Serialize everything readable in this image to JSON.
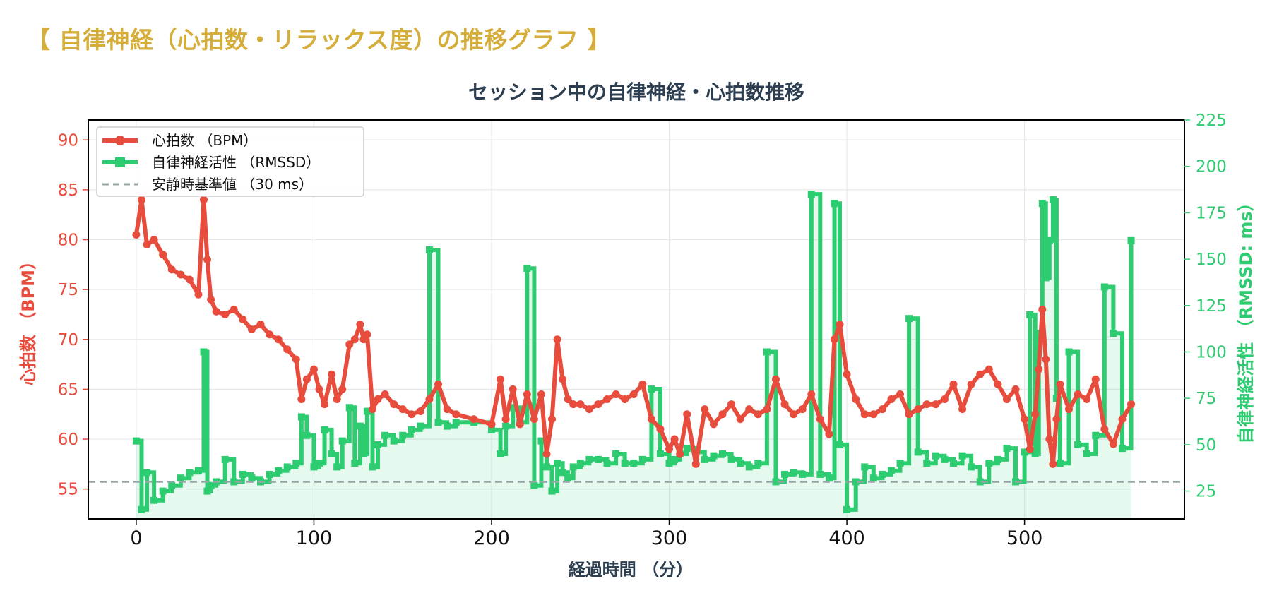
{
  "page": {
    "heading": "【 自律神経（心拍数・リラックス度）の推移グラフ 】"
  },
  "colors": {
    "heading": "#d4ad3a",
    "hr": "#e74c3c",
    "hrv": "#2ecc71",
    "baseline": "#95a5a6",
    "title": "#2c3e50"
  },
  "chart_data": {
    "type": "line",
    "title": "セッション中の自律神経・心拍数推移",
    "xlabel": "経過時間 （分）",
    "ylabel_left": "心拍数 （BPM）",
    "ylabel_right": "自律神経活性 （RMSSD: ms）",
    "xlim": [
      -27,
      590
    ],
    "ylim_left": [
      52,
      92
    ],
    "ylim_right": [
      10,
      225
    ],
    "x_ticks": [
      0,
      100,
      200,
      300,
      400,
      500
    ],
    "y_ticks_left": [
      55,
      60,
      65,
      70,
      75,
      80,
      85,
      90
    ],
    "y_ticks_right": [
      25,
      50,
      75,
      100,
      125,
      150,
      175,
      200,
      225
    ],
    "grid": true,
    "legend_position": "top-left",
    "series": [
      {
        "name": "心拍数 （BPM）",
        "axis": "left",
        "x": [
          0,
          3,
          6,
          10,
          15,
          20,
          25,
          30,
          35,
          38,
          40,
          42,
          45,
          50,
          55,
          60,
          65,
          70,
          75,
          80,
          85,
          90,
          93,
          96,
          100,
          103,
          106,
          110,
          113,
          116,
          120,
          123,
          126,
          128,
          130,
          133,
          136,
          140,
          145,
          150,
          155,
          160,
          165,
          170,
          175,
          180,
          190,
          200,
          205,
          208,
          212,
          216,
          220,
          224,
          228,
          231,
          234,
          237,
          240,
          243,
          246,
          250,
          255,
          260,
          265,
          270,
          275,
          280,
          285,
          290,
          295,
          300,
          303,
          306,
          310,
          315,
          320,
          325,
          330,
          335,
          340,
          345,
          350,
          355,
          360,
          365,
          370,
          375,
          380,
          385,
          390,
          393,
          396,
          400,
          405,
          410,
          415,
          420,
          425,
          430,
          435,
          440,
          445,
          450,
          455,
          460,
          465,
          470,
          475,
          480,
          485,
          490,
          495,
          500,
          503,
          506,
          508,
          510,
          512,
          514,
          516,
          518,
          520,
          525,
          530,
          535,
          540,
          545,
          550,
          555,
          560
        ],
        "values": [
          80.5,
          84.0,
          79.5,
          80.0,
          78.5,
          77.0,
          76.5,
          76.0,
          74.5,
          84.0,
          78.0,
          74.0,
          72.8,
          72.5,
          73.0,
          72.0,
          71.0,
          71.5,
          70.5,
          70.0,
          69.0,
          68.0,
          64.0,
          66.0,
          67.0,
          65.0,
          63.5,
          66.5,
          64.0,
          65.0,
          69.5,
          70.0,
          71.5,
          70.0,
          70.5,
          63.0,
          64.0,
          64.5,
          63.5,
          63.0,
          62.5,
          62.8,
          64.0,
          65.5,
          63.0,
          62.5,
          62.0,
          61.5,
          66.0,
          62.0,
          65.0,
          61.5,
          64.5,
          62.0,
          64.5,
          58.5,
          62.0,
          70.0,
          66.0,
          64.0,
          63.5,
          63.5,
          63.0,
          63.5,
          64.0,
          64.5,
          64.0,
          64.5,
          65.5,
          62.0,
          61.0,
          59.0,
          60.0,
          58.5,
          62.5,
          57.5,
          63.0,
          61.5,
          62.5,
          63.5,
          62.0,
          63.0,
          62.5,
          63.0,
          66.0,
          63.5,
          62.5,
          63.0,
          64.5,
          62.0,
          60.5,
          70.0,
          71.5,
          66.5,
          64.0,
          62.5,
          62.5,
          63.0,
          64.0,
          64.5,
          62.5,
          63.0,
          63.5,
          63.5,
          64.0,
          65.5,
          63.0,
          65.5,
          66.5,
          67.0,
          65.5,
          64.0,
          65.0,
          62.0,
          59.0,
          62.5,
          67.0,
          73.0,
          68.0,
          60.0,
          57.5,
          62.0,
          65.5,
          63.0,
          64.5,
          64.0,
          66.0,
          61.0,
          59.5,
          62.0,
          63.5
        ]
      },
      {
        "name": "自律神経活性 （RMSSD）",
        "axis": "right",
        "x": [
          0,
          3,
          6,
          10,
          15,
          20,
          25,
          30,
          35,
          38,
          40,
          42,
          45,
          50,
          55,
          60,
          65,
          70,
          75,
          80,
          85,
          90,
          93,
          96,
          100,
          103,
          106,
          110,
          113,
          116,
          120,
          123,
          126,
          128,
          130,
          133,
          136,
          140,
          145,
          150,
          155,
          160,
          165,
          170,
          175,
          180,
          190,
          200,
          205,
          208,
          212,
          216,
          220,
          224,
          228,
          231,
          234,
          237,
          240,
          243,
          246,
          250,
          255,
          260,
          265,
          270,
          275,
          280,
          285,
          290,
          295,
          300,
          303,
          306,
          310,
          315,
          320,
          325,
          330,
          335,
          340,
          345,
          350,
          355,
          360,
          365,
          370,
          375,
          380,
          385,
          390,
          393,
          396,
          400,
          405,
          410,
          415,
          420,
          425,
          430,
          435,
          440,
          445,
          450,
          455,
          460,
          465,
          470,
          475,
          480,
          485,
          490,
          495,
          500,
          503,
          506,
          508,
          510,
          512,
          514,
          516,
          518,
          520,
          525,
          530,
          535,
          540,
          545,
          550,
          555,
          560
        ],
        "values": [
          52,
          15,
          35,
          20,
          25,
          28,
          32,
          35,
          36,
          100,
          25,
          28,
          30,
          42,
          30,
          34,
          32,
          30,
          34,
          36,
          38,
          40,
          65,
          55,
          38,
          40,
          58,
          45,
          38,
          52,
          70,
          40,
          60,
          45,
          68,
          38,
          50,
          55,
          52,
          55,
          58,
          60,
          155,
          62,
          60,
          62,
          62,
          58,
          45,
          60,
          70,
          62,
          145,
          28,
          52,
          38,
          25,
          40,
          35,
          32,
          38,
          40,
          42,
          42,
          40,
          45,
          40,
          40,
          42,
          80,
          45,
          40,
          42,
          45,
          48,
          46,
          42,
          44,
          45,
          42,
          40,
          38,
          40,
          100,
          30,
          34,
          35,
          34,
          185,
          34,
          32,
          180,
          50,
          15,
          30,
          38,
          32,
          34,
          36,
          40,
          118,
          46,
          40,
          44,
          42,
          40,
          44,
          38,
          30,
          40,
          42,
          48,
          30,
          46,
          120,
          45,
          110,
          180,
          140,
          160,
          182,
          75,
          40,
          100,
          50,
          45,
          55,
          135,
          110,
          48,
          160
        ]
      },
      {
        "name": "安静時基準値 （30 ms）",
        "axis": "right",
        "style": "dashed",
        "values": [
          30
        ]
      }
    ]
  }
}
